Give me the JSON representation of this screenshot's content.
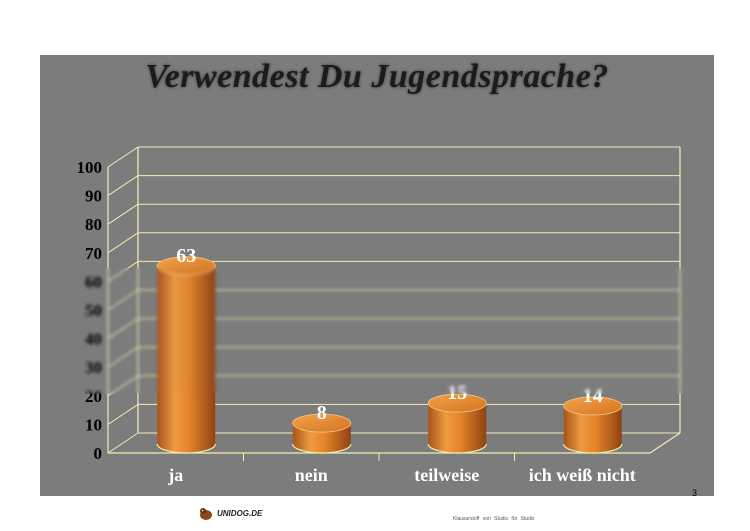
{
  "slide": {
    "title": "Verwendest Du Jugendsprache?",
    "page_number": "3",
    "footer_logo_text": "UNIDOG.DE",
    "footer_note": "Klausurstoff von Studis für Studis"
  },
  "colors": {
    "slide_background": "#7c7c7c",
    "bar_fill": "#e8862e",
    "gridline": "#f2eeb0",
    "label_text": "#ffffff",
    "axis_text": "#000000"
  },
  "chart_data": {
    "type": "bar",
    "style": "3d-cylinder",
    "title": "Verwendest Du Jugendsprache?",
    "categories": [
      "ja",
      "nein",
      "teilweise",
      "ich weiß nicht"
    ],
    "values": [
      63,
      8,
      15,
      14
    ],
    "data_labels": [
      "63",
      "8",
      "15",
      "14"
    ],
    "ylim": [
      0,
      100
    ],
    "yticks": [
      "0",
      "10",
      "20",
      "30",
      "40",
      "50",
      "60",
      "70",
      "80",
      "90",
      "100"
    ],
    "xlabel": "",
    "ylabel": "",
    "grid": true,
    "legend": "none"
  }
}
